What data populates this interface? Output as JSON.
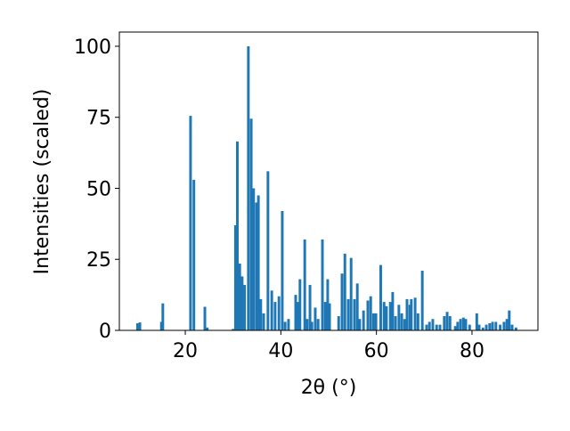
{
  "chart_data": {
    "type": "bar",
    "xlabel": "2θ (°)",
    "ylabel": "Intensities (scaled)",
    "x": [
      10.0,
      10.5,
      15.0,
      15.3,
      21.1,
      21.8,
      24.1,
      24.6,
      30.0,
      30.5,
      30.9,
      31.4,
      31.9,
      32.4,
      33.2,
      33.8,
      34.3,
      34.9,
      35.3,
      35.8,
      36.4,
      37.3,
      38.1,
      38.8,
      39.6,
      40.3,
      40.9,
      41.6,
      43.1,
      43.5,
      44.0,
      45.0,
      45.5,
      46.1,
      46.5,
      47.2,
      47.8,
      48.7,
      49.3,
      49.8,
      50.2,
      52.1,
      52.8,
      53.4,
      54.1,
      54.7,
      55.4,
      56.0,
      56.5,
      57.3,
      58.2,
      58.8,
      59.4,
      59.9,
      60.9,
      61.6,
      62.1,
      62.9,
      63.4,
      64.0,
      64.7,
      65.3,
      65.9,
      66.4,
      67.0,
      67.3,
      68.1,
      68.7,
      69.6,
      70.5,
      71.1,
      71.8,
      72.6,
      73.3,
      74.2,
      74.8,
      75.4,
      76.5,
      77.0,
      77.6,
      78.2,
      78.7,
      79.5,
      81.0,
      81.5,
      82.3,
      83.0,
      83.7,
      84.3,
      85.0,
      85.9,
      86.7,
      87.3,
      87.8,
      88.4,
      89.2
    ],
    "values": [
      2.5,
      2.8,
      3,
      9.5,
      75.5,
      53,
      8.3,
      1,
      0.5,
      37,
      66.5,
      23.5,
      19,
      16,
      100,
      74.5,
      50,
      45,
      47.5,
      11,
      6,
      56,
      14,
      10,
      12,
      42,
      3,
      4,
      12.5,
      10,
      18,
      32,
      4,
      16,
      3,
      8,
      4,
      32,
      10,
      18,
      9.5,
      5,
      20,
      27,
      11,
      25.5,
      11,
      16.5,
      4,
      7,
      10.5,
      12,
      6,
      6,
      23,
      10,
      8.5,
      10,
      13.5,
      5,
      9,
      6,
      4,
      11,
      9,
      11,
      11.5,
      6,
      21,
      2,
      3,
      4,
      2,
      2,
      5,
      6.5,
      5,
      1.5,
      3,
      4,
      4.5,
      4,
      2,
      6,
      2,
      1,
      2,
      2.5,
      3,
      3,
      2,
      3,
      4,
      7,
      2,
      1
    ],
    "color": "#1f77b4",
    "xlim": [
      6.2,
      93.8
    ],
    "xticks": [
      20,
      40,
      60,
      80
    ],
    "ylim": [
      0,
      105
    ],
    "yticks": [
      0,
      25,
      50,
      75,
      100
    ]
  }
}
